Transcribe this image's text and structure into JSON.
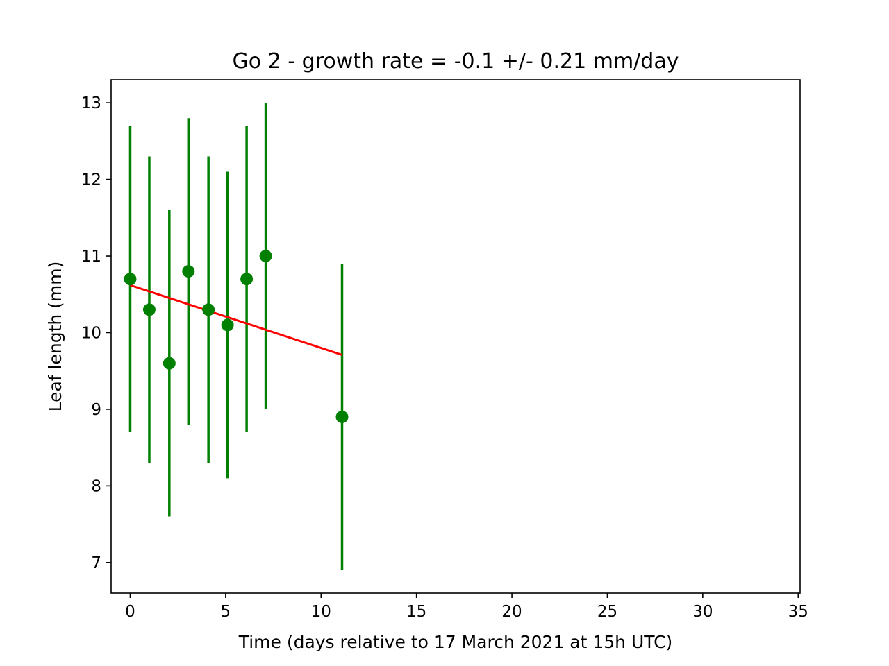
{
  "chart_data": {
    "type": "scatter",
    "title": "Go 2  -  growth rate = -0.1 +/- 0.21 mm/day",
    "xlabel": "Time (days relative to 17 March 2021 at 15h UTC)",
    "ylabel": "Leaf length (mm)",
    "xlim": [
      -1,
      35.1
    ],
    "ylim": [
      6.6,
      13.3
    ],
    "xticks": [
      0,
      5,
      10,
      15,
      20,
      25,
      30,
      35
    ],
    "yticks": [
      7,
      8,
      9,
      10,
      11,
      12,
      13
    ],
    "grid": false,
    "series": [
      {
        "kind": "errorbar",
        "color": "#008000",
        "points": [
          {
            "x": 0.0,
            "y": 10.7,
            "yerr": 2.0
          },
          {
            "x": 1.0,
            "y": 10.3,
            "yerr": 2.0
          },
          {
            "x": 2.05,
            "y": 9.6,
            "yerr": 2.0
          },
          {
            "x": 3.05,
            "y": 10.8,
            "yerr": 2.0
          },
          {
            "x": 4.1,
            "y": 10.3,
            "yerr": 2.0
          },
          {
            "x": 5.1,
            "y": 10.1,
            "yerr": 2.0
          },
          {
            "x": 6.1,
            "y": 10.7,
            "yerr": 2.0
          },
          {
            "x": 7.1,
            "y": 11.0,
            "yerr": 2.0
          },
          {
            "x": 11.1,
            "y": 8.9,
            "yerr": 2.0
          }
        ]
      },
      {
        "kind": "fit-line",
        "color": "#ff0000",
        "x": [
          0.0,
          11.1
        ],
        "y": [
          10.62,
          9.71
        ]
      }
    ]
  }
}
